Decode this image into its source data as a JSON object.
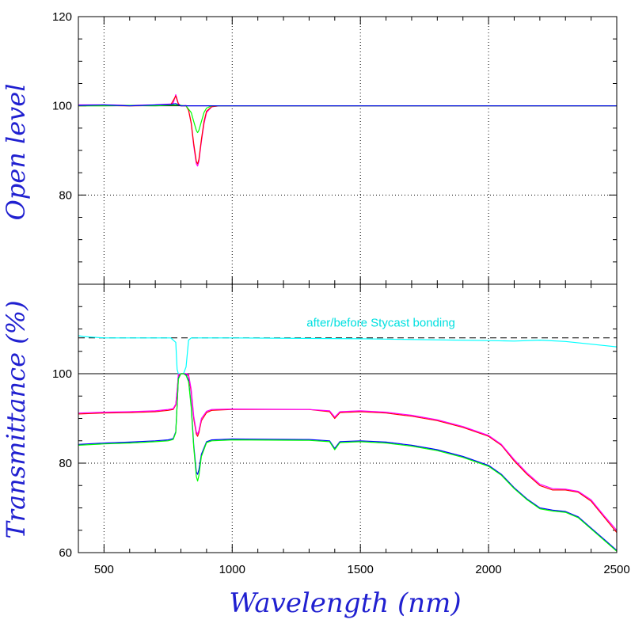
{
  "chart_data": [
    {
      "type": "line",
      "panel": "upper",
      "ylabel": "Open level",
      "xlim": [
        400,
        2500
      ],
      "ylim": [
        60,
        120
      ],
      "yticks": [
        "120",
        "100",
        "80"
      ],
      "y_tick_values": [
        120,
        100,
        80
      ],
      "grid": "dotted at x=500,1000,1500,2000 and y=80",
      "reference_lines": [
        {
          "y": 100,
          "style": "solid",
          "color": "#000000"
        }
      ],
      "series": [
        {
          "color": "#ff00ff",
          "x": [
            400,
            500,
            600,
            700,
            760,
            770,
            780,
            790,
            800,
            820,
            830,
            840,
            850,
            860,
            865,
            870,
            880,
            890,
            900,
            920,
            950,
            1000,
            1500,
            2000,
            2500
          ],
          "y": [
            100.2,
            100.2,
            100.1,
            100.2,
            100.4,
            100.6,
            102.5,
            100.5,
            100.0,
            100.1,
            99.0,
            96.0,
            91.0,
            87.0,
            86.5,
            87.5,
            92.0,
            96.0,
            98.5,
            99.8,
            100.0,
            100.0,
            100.0,
            100.0,
            100.0
          ]
        },
        {
          "color": "#ff0000",
          "x": [
            400,
            500,
            600,
            700,
            760,
            780,
            790,
            800,
            820,
            830,
            840,
            850,
            860,
            865,
            870,
            880,
            890,
            900,
            920,
            950,
            1000,
            1500,
            2000,
            2500
          ],
          "y": [
            100.0,
            100.1,
            100.0,
            100.1,
            100.2,
            102.2,
            100.4,
            100.0,
            100.0,
            99.0,
            96.2,
            91.5,
            87.5,
            87.0,
            88.0,
            92.5,
            96.5,
            98.8,
            99.8,
            100.0,
            100.0,
            100.0,
            100.0,
            100.0
          ]
        },
        {
          "color": "#00ff00",
          "x": [
            400,
            500,
            600,
            700,
            780,
            800,
            820,
            840,
            850,
            860,
            865,
            870,
            880,
            890,
            900,
            920,
            950,
            1000,
            1500,
            2000,
            2500
          ],
          "y": [
            100.0,
            100.0,
            100.1,
            100.0,
            100.2,
            100.1,
            100.0,
            98.5,
            96.5,
            94.5,
            94.0,
            94.5,
            96.5,
            98.5,
            99.5,
            100.0,
            100.0,
            100.0,
            100.0,
            100.0,
            100.0
          ]
        },
        {
          "color": "#0000ff",
          "x": [
            400,
            500,
            600,
            700,
            760,
            780,
            790,
            800,
            2500
          ],
          "y": [
            100.1,
            100.2,
            100.0,
            100.2,
            100.3,
            100.5,
            100.2,
            100.0,
            100.0
          ]
        }
      ]
    },
    {
      "type": "line",
      "panel": "lower",
      "ylabel": "Transmittance (%)",
      "xlabel": "Wavelength (nm)",
      "xlim": [
        400,
        2500
      ],
      "ylim": [
        60,
        120
      ],
      "xticks": [
        "500",
        "1000",
        "1500",
        "2000",
        "2500"
      ],
      "x_tick_values": [
        500,
        1000,
        1500,
        2000,
        2500
      ],
      "yticks": [
        "60",
        "80",
        "100"
      ],
      "y_tick_values": [
        60,
        80,
        100
      ],
      "grid": "dotted at x=500,1000,1500,2000 and y=80",
      "reference_lines": [
        {
          "y": 100,
          "style": "solid",
          "color": "#000000"
        },
        {
          "y": 108,
          "style": "dashed",
          "color": "#000000"
        }
      ],
      "annotation": {
        "text": "after/before Stycast bonding",
        "x": 1580,
        "y": 110.5
      },
      "series": [
        {
          "color": "#00ffff",
          "x": [
            400,
            420,
            500,
            600,
            700,
            760,
            770,
            780,
            785,
            790,
            800,
            810,
            820,
            830,
            840,
            850,
            900,
            1000,
            1500,
            2000,
            2100,
            2200,
            2300,
            2400,
            2500
          ],
          "y": [
            108.5,
            108.3,
            108.0,
            108.0,
            108.0,
            108.0,
            107.5,
            107.0,
            101.0,
            100.0,
            100.0,
            100.0,
            101.5,
            107.5,
            108.0,
            108.0,
            108.0,
            108.0,
            107.8,
            107.4,
            107.3,
            107.5,
            107.2,
            106.6,
            106.0
          ]
        },
        {
          "color": "#ff0000",
          "x": [
            400,
            500,
            600,
            700,
            750,
            770,
            780,
            785,
            790,
            800,
            810,
            820,
            830,
            840,
            850,
            860,
            865,
            870,
            880,
            900,
            920,
            1000,
            1300,
            1380,
            1400,
            1420,
            1500,
            1600,
            1700,
            1800,
            1900,
            2000,
            2050,
            2100,
            2150,
            2200,
            2250,
            2300,
            2350,
            2400,
            2450,
            2500
          ],
          "y": [
            91.0,
            91.2,
            91.3,
            91.5,
            91.8,
            92.0,
            93.0,
            96.0,
            99.5,
            100.0,
            100.0,
            100.0,
            99.5,
            96.0,
            90.0,
            86.5,
            86.0,
            86.8,
            89.5,
            91.3,
            91.8,
            92.0,
            92.0,
            91.5,
            90.0,
            91.3,
            91.5,
            91.2,
            90.5,
            89.5,
            88.0,
            86.0,
            84.0,
            80.5,
            77.5,
            75.0,
            74.0,
            74.0,
            73.5,
            71.5,
            68.0,
            64.5
          ]
        },
        {
          "color": "#ff00ff",
          "x": [
            400,
            500,
            600,
            700,
            750,
            770,
            780,
            785,
            790,
            800,
            810,
            820,
            830,
            840,
            850,
            860,
            865,
            870,
            880,
            900,
            920,
            1000,
            1300,
            1380,
            1400,
            1420,
            1500,
            1600,
            1700,
            1800,
            1900,
            2000,
            2050,
            2100,
            2150,
            2200,
            2250,
            2300,
            2350,
            2400,
            2450,
            2500
          ],
          "y": [
            91.2,
            91.4,
            91.5,
            91.7,
            92.0,
            92.2,
            93.2,
            96.3,
            99.8,
            100.0,
            100.0,
            100.0,
            99.8,
            96.5,
            90.5,
            87.0,
            86.5,
            87.3,
            90.0,
            91.6,
            92.0,
            92.1,
            92.0,
            91.7,
            90.3,
            91.5,
            91.7,
            91.4,
            90.7,
            89.7,
            88.2,
            86.2,
            84.2,
            80.8,
            77.8,
            75.3,
            74.3,
            74.2,
            73.7,
            71.8,
            68.3,
            65.0
          ]
        },
        {
          "color": "#0000ff",
          "x": [
            400,
            500,
            600,
            700,
            750,
            770,
            780,
            785,
            790,
            800,
            810,
            820,
            830,
            840,
            850,
            860,
            865,
            870,
            880,
            900,
            920,
            1000,
            1300,
            1380,
            1400,
            1420,
            1500,
            1600,
            1700,
            1800,
            1900,
            2000,
            2050,
            2100,
            2150,
            2200,
            2250,
            2300,
            2350,
            2400,
            2450,
            2500
          ],
          "y": [
            84.2,
            84.5,
            84.7,
            85.0,
            85.2,
            85.5,
            87.0,
            93.0,
            99.0,
            100.0,
            100.0,
            99.8,
            98.5,
            93.0,
            84.0,
            78.0,
            77.5,
            78.5,
            82.0,
            84.8,
            85.2,
            85.4,
            85.3,
            85.0,
            83.3,
            84.8,
            85.0,
            84.7,
            84.0,
            83.0,
            81.5,
            79.5,
            77.5,
            74.5,
            72.0,
            70.0,
            69.5,
            69.2,
            68.0,
            65.5,
            63.0,
            60.5
          ]
        },
        {
          "color": "#00ff00",
          "x": [
            400,
            500,
            600,
            700,
            750,
            770,
            780,
            785,
            790,
            800,
            810,
            820,
            830,
            840,
            850,
            860,
            865,
            870,
            880,
            900,
            920,
            1000,
            1300,
            1380,
            1400,
            1420,
            1500,
            1600,
            1700,
            1800,
            1900,
            2000,
            2050,
            2100,
            2150,
            2200,
            2250,
            2300,
            2350,
            2400,
            2450,
            2500
          ],
          "y": [
            84.0,
            84.3,
            84.5,
            84.8,
            85.0,
            85.3,
            86.8,
            92.8,
            98.8,
            100.0,
            100.0,
            99.6,
            98.2,
            92.5,
            83.5,
            77.0,
            76.0,
            77.2,
            81.5,
            84.6,
            85.0,
            85.2,
            85.1,
            84.8,
            83.0,
            84.6,
            84.8,
            84.5,
            83.8,
            82.8,
            81.3,
            79.3,
            77.3,
            74.3,
            71.8,
            69.8,
            69.3,
            69.0,
            67.8,
            65.3,
            62.8,
            60.3
          ]
        }
      ]
    }
  ]
}
